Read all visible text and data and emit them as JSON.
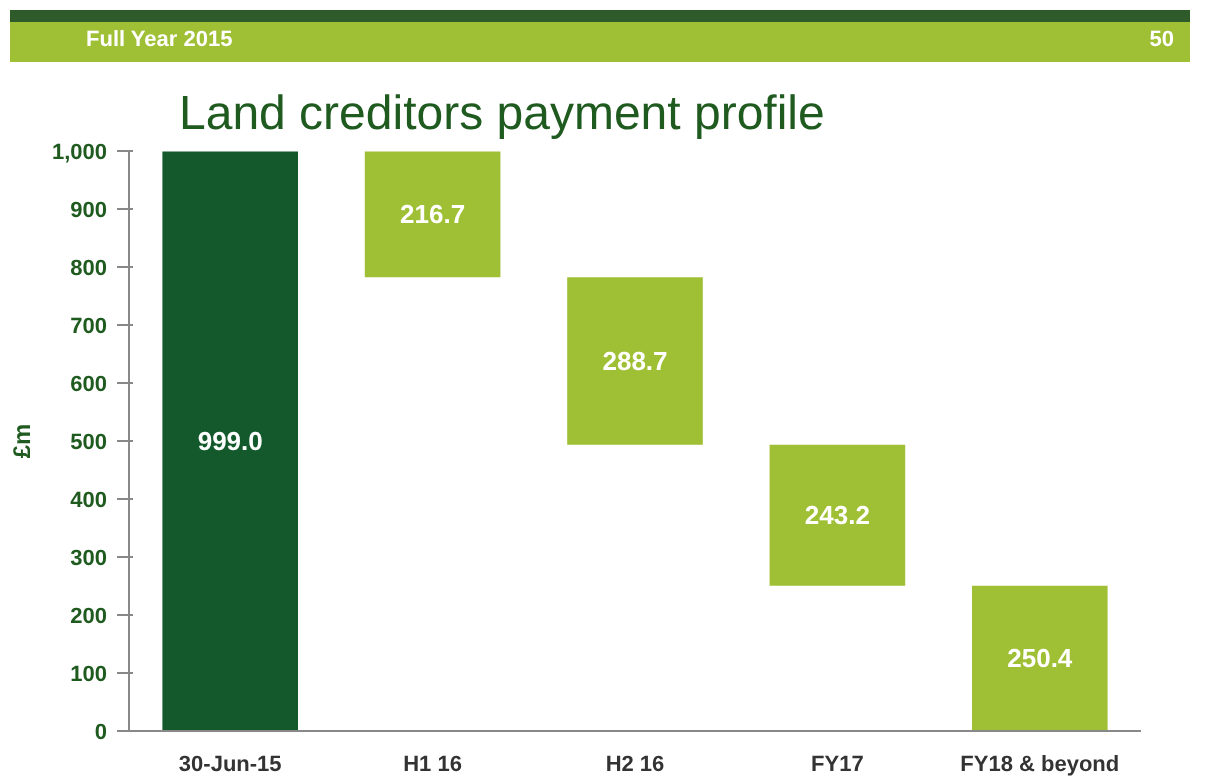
{
  "chart_data": {
    "type": "bar",
    "title": "Land creditors payment profile",
    "categories": [
      "30-Jun-15",
      "H1 16",
      "H2 16",
      "FY17",
      "FY18 & beyond"
    ],
    "values": [
      999.0,
      216.7,
      288.7,
      243.2,
      250.4
    ],
    "base": [
      0,
      782.3,
      493.6,
      250.4,
      0
    ],
    "colors": [
      "#13592b",
      "#9fbf35",
      "#9fbf35",
      "#9fbf35",
      "#9fbf35"
    ],
    "ylabel": "£m",
    "ylim": [
      0,
      1000
    ],
    "yticks": [
      0,
      {
        "value": 100,
        "label": "100"
      },
      200,
      300,
      400,
      500,
      600,
      700,
      800,
      900,
      {
        "value": 1000,
        "label": "1,000"
      }
    ],
    "grid": false,
    "value_labels": [
      "999.0",
      "216.7",
      "288.7",
      "243.2",
      "250.4"
    ],
    "annotations": [
      "Full Year 2015",
      "50"
    ]
  }
}
